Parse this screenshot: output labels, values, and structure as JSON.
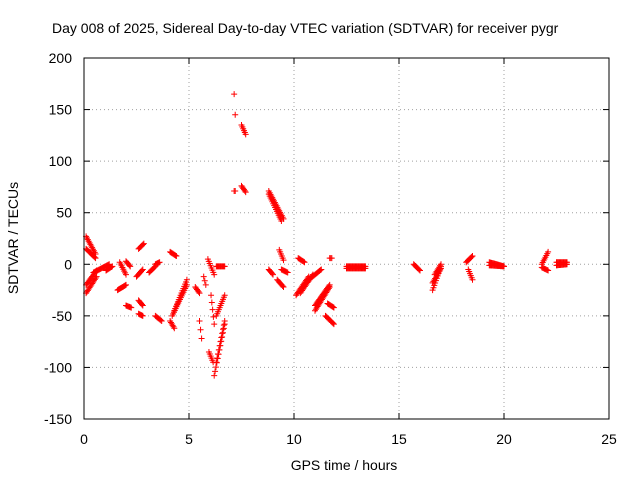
{
  "chart_data": {
    "type": "scatter",
    "title": "Day 008 of 2025, Sidereal Day-to-day VTEC variation (SDTVAR) for receiver pygr",
    "xlabel": "GPS time / hours",
    "ylabel": "SDTVAR / TECUs",
    "xlim": [
      0,
      25
    ],
    "ylim": [
      -150,
      200
    ],
    "xticks": [
      0,
      5,
      10,
      15,
      20,
      25
    ],
    "yticks": [
      -150,
      -100,
      -50,
      0,
      50,
      100,
      150,
      200
    ],
    "grid": true,
    "marker": "+",
    "color": "#ff0000",
    "clusters": [
      {
        "x": [
          0.1,
          0.55
        ],
        "y": [
          27,
          10
        ]
      },
      {
        "x": [
          0.1,
          0.55
        ],
        "y": [
          15,
          6
        ]
      },
      {
        "x": [
          0.1,
          0.6
        ],
        "y": [
          -28,
          -12
        ]
      },
      {
        "x": [
          0.1,
          0.6
        ],
        "y": [
          -20,
          -6
        ]
      },
      {
        "x": [
          0.45,
          1.2
        ],
        "y": [
          -8,
          0
        ]
      },
      {
        "x": [
          1.05,
          1.35
        ],
        "y": [
          -6,
          -2
        ]
      },
      {
        "x": [
          1.6,
          2.0
        ],
        "y": [
          -25,
          -20
        ]
      },
      {
        "x": [
          1.7,
          2.0
        ],
        "y": [
          2,
          -10
        ]
      },
      {
        "x": [
          2.0,
          2.2
        ],
        "y": [
          3,
          -2
        ]
      },
      {
        "x": [
          2.0,
          2.25
        ],
        "y": [
          -40,
          -42
        ]
      },
      {
        "x": [
          2.6,
          2.85
        ],
        "y": [
          15,
          20
        ]
      },
      {
        "x": [
          2.5,
          2.8
        ],
        "y": [
          -12,
          -5
        ]
      },
      {
        "x": [
          2.6,
          2.8
        ],
        "y": [
          -35,
          -40
        ]
      },
      {
        "x": [
          2.6,
          2.8
        ],
        "y": [
          -48,
          -50
        ]
      },
      {
        "x": [
          3.1,
          3.4
        ],
        "y": [
          -8,
          -2
        ]
      },
      {
        "x": [
          3.4,
          3.7
        ],
        "y": [
          -50,
          -55
        ]
      },
      {
        "x": [
          3.4,
          3.6
        ],
        "y": [
          0,
          2
        ]
      },
      {
        "x": [
          4.1,
          4.4
        ],
        "y": [
          12,
          8
        ]
      },
      {
        "x": [
          4.1,
          4.3
        ],
        "y": [
          -55,
          -62
        ]
      },
      {
        "x": [
          4.2,
          4.9
        ],
        "y": [
          -50,
          -20
        ]
      },
      {
        "x": [
          4.3,
          4.9
        ],
        "y": [
          -45,
          -15
        ]
      },
      {
        "x": [
          5.3,
          5.5
        ],
        "y": [
          -22,
          -28
        ]
      },
      {
        "x": [
          5.5,
          5.6
        ],
        "y": [
          -55,
          -72
        ]
      },
      {
        "x": [
          5.7,
          5.8
        ],
        "y": [
          -12,
          -20
        ]
      },
      {
        "x": [
          5.9,
          6.2
        ],
        "y": [
          5,
          -10
        ]
      },
      {
        "x": [
          5.95,
          6.15
        ],
        "y": [
          -85,
          -95
        ]
      },
      {
        "x": [
          6.05,
          6.2
        ],
        "y": [
          -30,
          -58
        ]
      },
      {
        "x": [
          6.2,
          6.7
        ],
        "y": [
          -108,
          -58
        ]
      },
      {
        "x": [
          6.3,
          6.7
        ],
        "y": [
          -95,
          -55
        ]
      },
      {
        "x": [
          6.3,
          6.7
        ],
        "y": [
          -50,
          -30
        ]
      },
      {
        "x": [
          6.3,
          6.7
        ],
        "y": [
          -2,
          -2
        ]
      },
      {
        "x": [
          7.15,
          7.2
        ],
        "y": [
          165,
          145
        ]
      },
      {
        "x": [
          7.15,
          7.2
        ],
        "y": [
          71,
          71
        ]
      },
      {
        "x": [
          7.5,
          7.7
        ],
        "y": [
          135,
          126
        ]
      },
      {
        "x": [
          7.5,
          7.7
        ],
        "y": [
          76,
          70
        ]
      },
      {
        "x": [
          8.8,
          9.5
        ],
        "y": [
          71,
          44
        ]
      },
      {
        "x": [
          8.8,
          9.4
        ],
        "y": [
          68,
          42
        ]
      },
      {
        "x": [
          9.3,
          9.5
        ],
        "y": [
          14,
          4
        ]
      },
      {
        "x": [
          9.4,
          9.7
        ],
        "y": [
          -5,
          -8
        ]
      },
      {
        "x": [
          9.2,
          9.5
        ],
        "y": [
          -15,
          -22
        ]
      },
      {
        "x": [
          8.8,
          9.0
        ],
        "y": [
          -5,
          -10
        ]
      },
      {
        "x": [
          10.2,
          10.5
        ],
        "y": [
          6,
          2
        ]
      },
      {
        "x": [
          10.1,
          10.7
        ],
        "y": [
          -30,
          -12
        ]
      },
      {
        "x": [
          10.3,
          10.9
        ],
        "y": [
          -28,
          -10
        ]
      },
      {
        "x": [
          10.7,
          11.3
        ],
        "y": [
          -15,
          -5
        ]
      },
      {
        "x": [
          11.0,
          11.7
        ],
        "y": [
          -45,
          -22
        ]
      },
      {
        "x": [
          11.0,
          11.7
        ],
        "y": [
          -40,
          -20
        ]
      },
      {
        "x": [
          11.5,
          11.9
        ],
        "y": [
          -50,
          -58
        ]
      },
      {
        "x": [
          11.6,
          11.9
        ],
        "y": [
          -38,
          -42
        ]
      },
      {
        "x": [
          11.7,
          11.8
        ],
        "y": [
          6,
          6
        ]
      },
      {
        "x": [
          12.5,
          13.4
        ],
        "y": [
          -2,
          -2
        ]
      },
      {
        "x": [
          12.5,
          13.4
        ],
        "y": [
          -4,
          -4
        ]
      },
      {
        "x": [
          15.7,
          16.0
        ],
        "y": [
          0,
          -6
        ]
      },
      {
        "x": [
          16.6,
          17.0
        ],
        "y": [
          -25,
          -2
        ]
      },
      {
        "x": [
          16.6,
          17.0
        ],
        "y": [
          -18,
          -4
        ]
      },
      {
        "x": [
          16.7,
          17.0
        ],
        "y": [
          -10,
          0
        ]
      },
      {
        "x": [
          18.2,
          18.5
        ],
        "y": [
          2,
          8
        ]
      },
      {
        "x": [
          18.3,
          18.5
        ],
        "y": [
          -5,
          -15
        ]
      },
      {
        "x": [
          19.3,
          20.0
        ],
        "y": [
          2,
          -2
        ]
      },
      {
        "x": [
          19.3,
          20.0
        ],
        "y": [
          -1,
          -2
        ]
      },
      {
        "x": [
          21.8,
          22.1
        ],
        "y": [
          0,
          12
        ]
      },
      {
        "x": [
          21.8,
          22.1
        ],
        "y": [
          -3,
          -6
        ]
      },
      {
        "x": [
          22.5,
          23.0
        ],
        "y": [
          2,
          2
        ]
      },
      {
        "x": [
          22.5,
          23.0
        ],
        "y": [
          -1,
          0
        ]
      }
    ]
  }
}
